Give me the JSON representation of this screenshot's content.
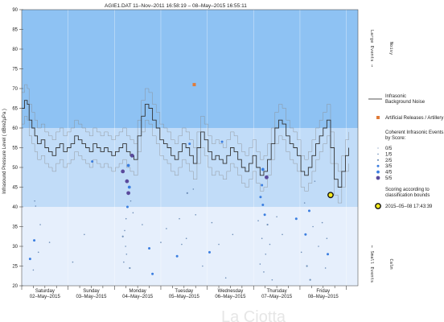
{
  "chart_data": {
    "type": "line",
    "title": "AGIE1.DAT    11–Nov–2011 16:58:19   –   08–May–2015 16:55:11",
    "ylabel": "Infrasound Pressure Level  ( dBre2µPa )",
    "ylim": [
      20,
      90
    ],
    "yticks": [
      20,
      25,
      30,
      35,
      40,
      45,
      50,
      55,
      60,
      65,
      70,
      75,
      80,
      85,
      90
    ],
    "xlim": [
      0,
      7.25
    ],
    "days": [
      {
        "day": "Saturday",
        "date": "02–May–2015"
      },
      {
        "day": "Sunday",
        "date": "03–May–2015"
      },
      {
        "day": "Monday",
        "date": "04–May–2015"
      },
      {
        "day": "Tuesday",
        "date": "05–May–2015"
      },
      {
        "day": "Wednesday",
        "date": "06–May–2015"
      },
      {
        "day": "Thursday",
        "date": "07–May–2015"
      },
      {
        "day": "Friday",
        "date": "08–May–2015"
      }
    ],
    "zones": [
      {
        "from": 60,
        "to": 90,
        "color": "#8ec2f3"
      },
      {
        "from": 40,
        "to": 60,
        "color": "#c1dcf8"
      },
      {
        "from": 20,
        "to": 40,
        "color": "#e6effc"
      }
    ],
    "zone_labels": {
      "large": "Large Events →",
      "noisy": "Noisy",
      "small": "← Small Events",
      "calm": "Calm"
    },
    "noise_series": {
      "name": "Infrasonic Background Noise",
      "x": [
        0.0,
        0.06,
        0.12,
        0.16,
        0.22,
        0.28,
        0.34,
        0.42,
        0.5,
        0.58,
        0.66,
        0.74,
        0.82,
        0.9,
        0.98,
        1.06,
        1.14,
        1.22,
        1.3,
        1.38,
        1.46,
        1.54,
        1.62,
        1.7,
        1.78,
        1.86,
        1.94,
        2.02,
        2.1,
        2.18,
        2.26,
        2.34,
        2.42,
        2.5,
        2.58,
        2.66,
        2.74,
        2.82,
        2.9,
        2.98,
        3.06,
        3.14,
        3.22,
        3.3,
        3.38,
        3.46,
        3.54,
        3.62,
        3.7,
        3.78,
        3.86,
        3.94,
        4.02,
        4.1,
        4.18,
        4.26,
        4.34,
        4.42,
        4.5,
        4.58,
        4.66,
        4.74,
        4.82,
        4.9,
        4.98,
        5.06,
        5.14,
        5.22,
        5.3,
        5.38,
        5.46,
        5.54,
        5.62,
        5.7,
        5.78,
        5.86,
        5.94,
        6.02,
        6.1,
        6.18,
        6.26,
        6.34,
        6.42,
        6.5,
        6.58,
        6.66,
        6.74,
        6.82,
        6.9,
        6.98,
        7.05
      ],
      "y": [
        65,
        67,
        66,
        62,
        60,
        58,
        56,
        57,
        55,
        54,
        53,
        55,
        56,
        54,
        55,
        56,
        58,
        57,
        56,
        55,
        54,
        56,
        55,
        54,
        55,
        54,
        53,
        54,
        55,
        56,
        54,
        53,
        52,
        58,
        63,
        66,
        65,
        62,
        60,
        57,
        56,
        55,
        53,
        52,
        54,
        56,
        55,
        53,
        51,
        55,
        59,
        57,
        54,
        52,
        53,
        52,
        51,
        53,
        55,
        54,
        52,
        50,
        49,
        51,
        53,
        50,
        48,
        49,
        52,
        56,
        60,
        62,
        61,
        58,
        56,
        55,
        53,
        49,
        48,
        50,
        53,
        56,
        58,
        60,
        62,
        55,
        47,
        45,
        49,
        53,
        55
      ]
    },
    "artillery": {
      "name": "Artificial Releases / Artillery",
      "points": [
        {
          "x": 3.72,
          "y": 71
        }
      ]
    },
    "coherent_events": {
      "name": "Coherent Infrasonic Events, by Score:",
      "scores": [
        "0/5",
        "1/5",
        "2/5",
        "3/5",
        "4/5",
        "5/5"
      ],
      "points": [
        {
          "x": 0.28,
          "y": 41.5,
          "s": 1
        },
        {
          "x": 0.3,
          "y": 40.2,
          "s": 1
        },
        {
          "x": 0.27,
          "y": 31.5,
          "s": 3
        },
        {
          "x": 0.18,
          "y": 26.8,
          "s": 3
        },
        {
          "x": 0.36,
          "y": 28.5,
          "s": 1
        },
        {
          "x": 0.25,
          "y": 24.0,
          "s": 1
        },
        {
          "x": 0.4,
          "y": 35.5,
          "s": 1
        },
        {
          "x": 0.6,
          "y": 31.0,
          "s": 1
        },
        {
          "x": 1.52,
          "y": 51.5,
          "s": 3
        },
        {
          "x": 1.35,
          "y": 33.0,
          "s": 1
        },
        {
          "x": 1.1,
          "y": 26.0,
          "s": 1
        },
        {
          "x": 2.38,
          "y": 53.0,
          "s": 5
        },
        {
          "x": 2.18,
          "y": 49.0,
          "s": 5
        },
        {
          "x": 2.3,
          "y": 50.5,
          "s": 4
        },
        {
          "x": 2.27,
          "y": 46.5,
          "s": 5
        },
        {
          "x": 2.3,
          "y": 43.5,
          "s": 5
        },
        {
          "x": 2.32,
          "y": 45.0,
          "s": 4
        },
        {
          "x": 2.28,
          "y": 40.0,
          "s": 3
        },
        {
          "x": 2.25,
          "y": 37.0,
          "s": 1
        },
        {
          "x": 2.22,
          "y": 34.0,
          "s": 1
        },
        {
          "x": 2.18,
          "y": 32.5,
          "s": 2
        },
        {
          "x": 2.24,
          "y": 30.0,
          "s": 1
        },
        {
          "x": 2.26,
          "y": 28.0,
          "s": 1
        },
        {
          "x": 2.2,
          "y": 26.0,
          "s": 1
        },
        {
          "x": 2.33,
          "y": 24.5,
          "s": 2
        },
        {
          "x": 2.4,
          "y": 38.5,
          "s": 1
        },
        {
          "x": 2.35,
          "y": 41.5,
          "s": 1
        },
        {
          "x": 2.75,
          "y": 29.5,
          "s": 3
        },
        {
          "x": 2.82,
          "y": 23.0,
          "s": 3
        },
        {
          "x": 2.6,
          "y": 35.5,
          "s": 1
        },
        {
          "x": 3.0,
          "y": 31.0,
          "s": 1
        },
        {
          "x": 3.12,
          "y": 34.5,
          "s": 1
        },
        {
          "x": 3.35,
          "y": 27.5,
          "s": 3
        },
        {
          "x": 3.4,
          "y": 37.0,
          "s": 1
        },
        {
          "x": 3.45,
          "y": 30.5,
          "s": 1
        },
        {
          "x": 3.57,
          "y": 43.5,
          "s": 2
        },
        {
          "x": 3.62,
          "y": 56.0,
          "s": 3
        },
        {
          "x": 3.7,
          "y": 44.5,
          "s": 1
        },
        {
          "x": 3.55,
          "y": 32.0,
          "s": 1
        },
        {
          "x": 3.75,
          "y": 38.0,
          "s": 1
        },
        {
          "x": 3.9,
          "y": 25.0,
          "s": 1
        },
        {
          "x": 4.05,
          "y": 28.5,
          "s": 3
        },
        {
          "x": 4.32,
          "y": 56.5,
          "s": 3
        },
        {
          "x": 4.1,
          "y": 36.0,
          "s": 1
        },
        {
          "x": 4.25,
          "y": 30.5,
          "s": 1
        },
        {
          "x": 4.4,
          "y": 22.0,
          "s": 1
        },
        {
          "x": 4.55,
          "y": 33.0,
          "s": 1
        },
        {
          "x": 5.2,
          "y": 49.5,
          "s": 4
        },
        {
          "x": 5.28,
          "y": 47.5,
          "s": 5
        },
        {
          "x": 5.18,
          "y": 45.5,
          "s": 3
        },
        {
          "x": 5.15,
          "y": 42.5,
          "s": 3
        },
        {
          "x": 5.2,
          "y": 40.5,
          "s": 3
        },
        {
          "x": 5.24,
          "y": 38.0,
          "s": 3
        },
        {
          "x": 5.3,
          "y": 35.5,
          "s": 2
        },
        {
          "x": 5.18,
          "y": 32.0,
          "s": 1
        },
        {
          "x": 5.26,
          "y": 28.0,
          "s": 1
        },
        {
          "x": 5.14,
          "y": 25.5,
          "s": 1
        },
        {
          "x": 5.22,
          "y": 23.5,
          "s": 1
        },
        {
          "x": 5.1,
          "y": 36.5,
          "s": 1
        },
        {
          "x": 5.35,
          "y": 30.5,
          "s": 1
        },
        {
          "x": 5.5,
          "y": 37.5,
          "s": 1
        },
        {
          "x": 5.62,
          "y": 33.0,
          "s": 1
        },
        {
          "x": 5.4,
          "y": 21.5,
          "s": 1
        },
        {
          "x": 5.92,
          "y": 37.0,
          "s": 3
        },
        {
          "x": 6.2,
          "y": 39.0,
          "s": 3
        },
        {
          "x": 6.12,
          "y": 33.0,
          "s": 3
        },
        {
          "x": 6.03,
          "y": 28.5,
          "s": 1
        },
        {
          "x": 6.15,
          "y": 25.0,
          "s": 2
        },
        {
          "x": 6.22,
          "y": 21.5,
          "s": 2
        },
        {
          "x": 6.1,
          "y": 41.0,
          "s": 1
        },
        {
          "x": 6.28,
          "y": 35.0,
          "s": 1
        },
        {
          "x": 6.32,
          "y": 46.5,
          "s": 1
        },
        {
          "x": 6.4,
          "y": 30.0,
          "s": 1
        },
        {
          "x": 6.6,
          "y": 28.0,
          "s": 3
        },
        {
          "x": 6.58,
          "y": 32.0,
          "s": 1
        },
        {
          "x": 6.48,
          "y": 36.0,
          "s": 1
        },
        {
          "x": 6.55,
          "y": 24.5,
          "s": 1
        }
      ]
    },
    "latest_event": {
      "x": 6.66,
      "y": 43
    },
    "legend_notes": {
      "scoring": "Scoring according to classification bounds",
      "latest": "2015–05–08 17:43:39"
    }
  },
  "watermark": "La Ciotta",
  "colors": {
    "noise_line": "#333333",
    "band_line": "#8a8a8a",
    "event_fill": "#3b7ee0",
    "event_dark": "#5a4a9c",
    "artillery": "#e07b39",
    "latest_marker": "#f5ea1a"
  }
}
